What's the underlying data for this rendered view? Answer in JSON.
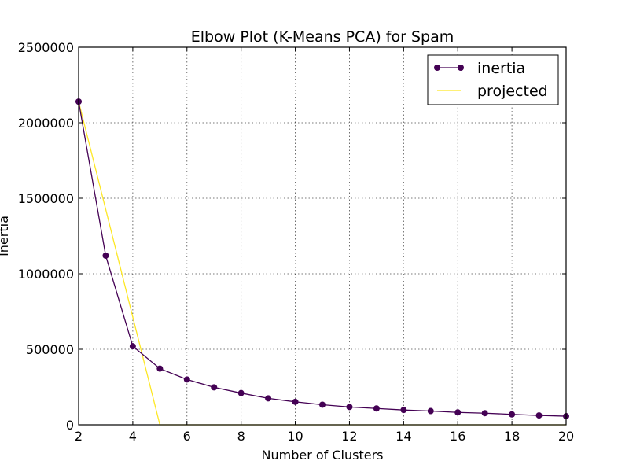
{
  "chart_data": {
    "type": "line",
    "title": "Elbow Plot (K-Means PCA) for Spam",
    "xlabel": "Number of Clusters",
    "ylabel": "Inertia",
    "xlim": [
      2,
      20
    ],
    "ylim": [
      0,
      2500000
    ],
    "xticks": [
      "2",
      "4",
      "6",
      "8",
      "10",
      "12",
      "14",
      "16",
      "18",
      "20"
    ],
    "yticks": [
      "0",
      "500000",
      "1000000",
      "1500000",
      "2000000",
      "2500000"
    ],
    "grid": true,
    "legend_position": "top-right",
    "series": [
      {
        "name": "inertia",
        "color": "#440154",
        "marker": "circle",
        "x": [
          2,
          3,
          4,
          5,
          6,
          7,
          8,
          9,
          10,
          11,
          12,
          13,
          14,
          15,
          16,
          17,
          18,
          19,
          20
        ],
        "y": [
          2140000,
          1120000,
          520000,
          372000,
          300000,
          248000,
          210000,
          175000,
          152000,
          133000,
          118000,
          108000,
          98000,
          91000,
          82000,
          77000,
          69000,
          62000,
          57000
        ]
      },
      {
        "name": "projected",
        "color": "#fde725",
        "marker": "none",
        "x": [
          2,
          5,
          20
        ],
        "y": [
          2140000,
          0,
          0
        ]
      }
    ]
  }
}
